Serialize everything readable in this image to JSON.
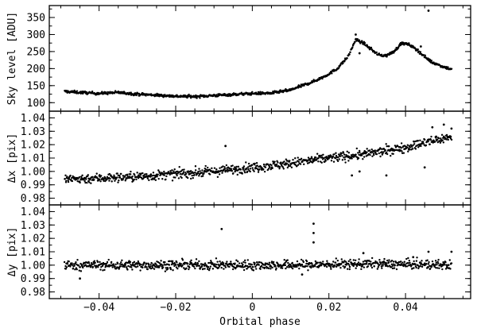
{
  "chart_data": [
    {
      "type": "scatter",
      "title": "",
      "xlabel": "",
      "ylabel": "Sky level [ADU]",
      "xlim": [
        -0.053,
        0.057
      ],
      "ylim": [
        75,
        385
      ],
      "xticks": [
        -0.04,
        -0.02,
        0,
        0.02,
        0.04
      ],
      "yticks": [
        100,
        150,
        200,
        250,
        300,
        350
      ],
      "ytick_labels": [
        "100",
        "150",
        "200",
        "250",
        "300",
        "350"
      ],
      "series": [
        {
          "points_description": "dense dotted trend",
          "anchors": [
            [
              -0.049,
              133
            ],
            [
              -0.045,
              130
            ],
            [
              -0.04,
              127
            ],
            [
              -0.035,
              130
            ],
            [
              -0.03,
              125
            ],
            [
              -0.025,
              122
            ],
            [
              -0.02,
              119
            ],
            [
              -0.015,
              118
            ],
            [
              -0.01,
              121
            ],
            [
              -0.005,
              124
            ],
            [
              0,
              127
            ],
            [
              0.005,
              128
            ],
            [
              0.01,
              137
            ],
            [
              0.013,
              150
            ],
            [
              0.016,
              162
            ],
            [
              0.019,
              178
            ],
            [
              0.022,
              198
            ],
            [
              0.025,
              235
            ],
            [
              0.027,
              285
            ],
            [
              0.029,
              275
            ],
            [
              0.031,
              257
            ],
            [
              0.033,
              240
            ],
            [
              0.035,
              238
            ],
            [
              0.037,
              250
            ],
            [
              0.039,
              275
            ],
            [
              0.041,
              270
            ],
            [
              0.043,
              255
            ],
            [
              0.045,
              235
            ],
            [
              0.047,
              218
            ],
            [
              0.05,
              205
            ],
            [
              0.052,
              198
            ]
          ],
          "outliers": [
            [
              0.046,
              370
            ],
            [
              0.027,
              300
            ],
            [
              0.028,
              245
            ],
            [
              0.044,
              265
            ]
          ],
          "scatter": 4
        }
      ]
    },
    {
      "type": "scatter",
      "title": "",
      "xlabel": "",
      "ylabel": "Δx [pix]",
      "xlim": [
        -0.053,
        0.057
      ],
      "ylim": [
        0.975,
        1.045
      ],
      "xticks": [
        -0.04,
        -0.02,
        0,
        0.02,
        0.04
      ],
      "yticks": [
        0.98,
        0.99,
        1.0,
        1.01,
        1.02,
        1.03,
        1.04
      ],
      "ytick_labels": [
        "0.98",
        "0.99",
        "1.00",
        "1.01",
        "1.02",
        "1.03",
        "1.04"
      ],
      "series": [
        {
          "points_description": "dense dotted trend",
          "anchors": [
            [
              -0.049,
              0.994
            ],
            [
              -0.04,
              0.995
            ],
            [
              -0.03,
              0.996
            ],
            [
              -0.02,
              0.998
            ],
            [
              -0.01,
              1.0
            ],
            [
              0,
              1.003
            ],
            [
              0.01,
              1.006
            ],
            [
              0.02,
              1.01
            ],
            [
              0.03,
              1.013
            ],
            [
              0.04,
              1.018
            ],
            [
              0.052,
              1.026
            ]
          ],
          "outliers": [
            [
              -0.007,
              1.019
            ],
            [
              0.026,
              0.997
            ],
            [
              0.035,
              0.997
            ],
            [
              0.045,
              1.003
            ],
            [
              0.05,
              1.035
            ],
            [
              0.047,
              1.033
            ],
            [
              0.052,
              1.032
            ],
            [
              0.028,
              1.0
            ],
            [
              0.048,
              1.026
            ]
          ],
          "scatter": 0.0035
        }
      ]
    },
    {
      "type": "scatter",
      "title": "",
      "xlabel": "Orbital phase",
      "ylabel": "Δy [pix]",
      "xlim": [
        -0.053,
        0.057
      ],
      "ylim": [
        0.975,
        1.045
      ],
      "xticks": [
        -0.04,
        -0.02,
        0,
        0.02,
        0.04
      ],
      "xtick_labels": [
        "−0.04",
        "−0.02",
        "0",
        "0.02",
        "0.04"
      ],
      "yticks": [
        0.98,
        0.99,
        1.0,
        1.01,
        1.02,
        1.03,
        1.04
      ],
      "ytick_labels": [
        "0.98",
        "0.99",
        "1.00",
        "1.01",
        "1.02",
        "1.03",
        "1.04"
      ],
      "series": [
        {
          "points_description": "dense dotted trend",
          "anchors": [
            [
              -0.049,
              1.0
            ],
            [
              -0.03,
              1.0
            ],
            [
              -0.01,
              1.0
            ],
            [
              0.01,
              1.0
            ],
            [
              0.03,
              1.001
            ],
            [
              0.052,
              1.0
            ]
          ],
          "outliers": [
            [
              -0.008,
              1.027
            ],
            [
              0.016,
              1.031
            ],
            [
              0.016,
              1.024
            ],
            [
              0.016,
              1.017
            ],
            [
              0.029,
              1.009
            ],
            [
              0.042,
              1.006
            ],
            [
              0.046,
              1.01
            ],
            [
              0.052,
              1.01
            ],
            [
              0.013,
              0.993
            ],
            [
              -0.045,
              0.99
            ]
          ],
          "scatter": 0.0035
        }
      ]
    }
  ]
}
